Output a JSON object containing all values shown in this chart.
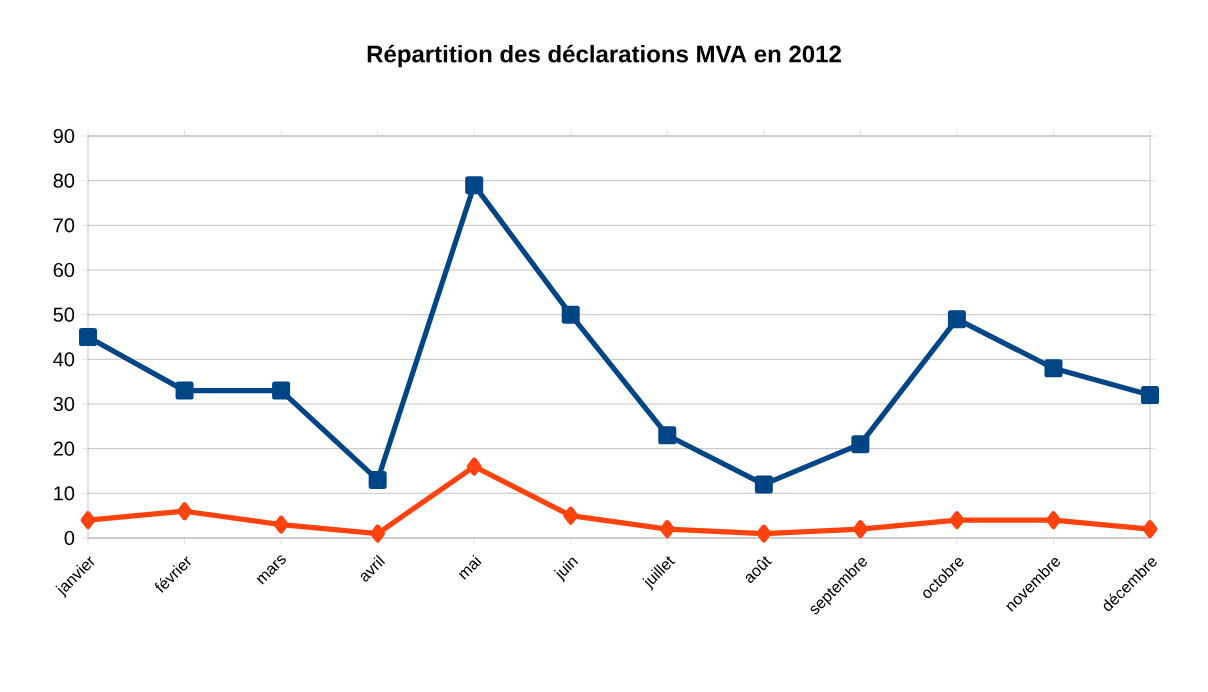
{
  "chart_data": {
    "type": "line",
    "title": "Répartition des déclarations MVA en 2012",
    "categories": [
      "janvier",
      "février",
      "mars",
      "avril",
      "mai",
      "juin",
      "juillet",
      "août",
      "septembre",
      "octobre",
      "novembre",
      "décembre"
    ],
    "series": [
      {
        "color": "#004586",
        "marker": "square",
        "values": [
          45,
          33,
          33,
          13,
          79,
          50,
          23,
          12,
          21,
          49,
          38,
          32
        ]
      },
      {
        "color": "#ff420e",
        "marker": "diamond",
        "values": [
          4,
          6,
          3,
          1,
          16,
          5,
          2,
          1,
          2,
          4,
          4,
          2
        ]
      }
    ],
    "ylim": [
      0,
      90
    ],
    "yticks": [
      0,
      10,
      20,
      30,
      40,
      50,
      60,
      70,
      80,
      90
    ],
    "grid": "y",
    "legend": false
  }
}
